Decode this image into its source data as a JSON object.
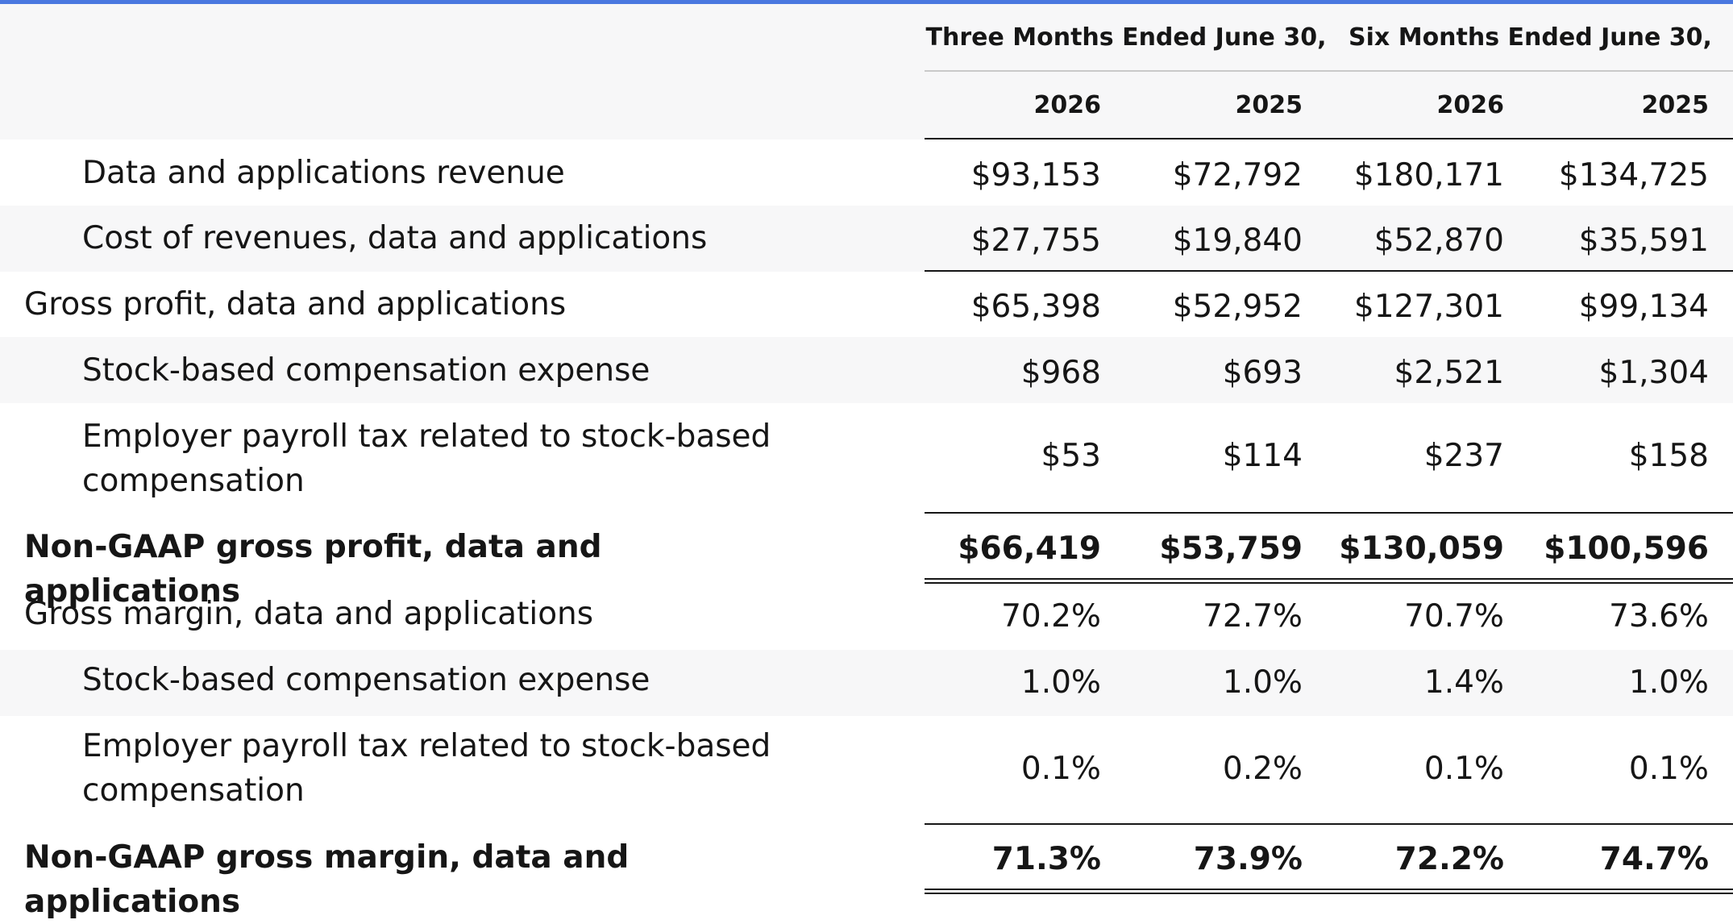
{
  "headers": {
    "periods": [
      "Three Months Ended June 30,",
      "Six Months Ended June 30,"
    ],
    "years": [
      "2026",
      "2025",
      "2026",
      "2025"
    ]
  },
  "rows": [
    {
      "label": "Data and applications revenue",
      "values": [
        "$93,153",
        "$72,792",
        "$180,171",
        "$134,725"
      ]
    },
    {
      "label": "Cost of revenues, data and applications",
      "values": [
        "$27,755",
        "$19,840",
        "$52,870",
        "$35,591"
      ]
    },
    {
      "label": "Gross profit, data and applications",
      "values": [
        "$65,398",
        "$52,952",
        "$127,301",
        "$99,134"
      ]
    },
    {
      "label": "Stock-based compensation expense",
      "values": [
        "$968",
        "$693",
        "$2,521",
        "$1,304"
      ]
    },
    {
      "label": "Employer payroll tax related to stock-based compensation",
      "values": [
        "$53",
        "$114",
        "$237",
        "$158"
      ]
    },
    {
      "label": "Non-GAAP gross profit, data and applications",
      "values": [
        "$66,419",
        "$53,759",
        "$130,059",
        "$100,596"
      ]
    },
    {
      "label": "Gross margin, data and applications",
      "values": [
        "70.2%",
        "72.7%",
        "70.7%",
        "73.6%"
      ]
    },
    {
      "label": "Stock-based compensation expense",
      "values": [
        "1.0%",
        "1.0%",
        "1.4%",
        "1.0%"
      ]
    },
    {
      "label": "Employer payroll tax related to stock-based compensation",
      "values": [
        "0.1%",
        "0.2%",
        "0.1%",
        "0.1%"
      ]
    },
    {
      "label": "Non-GAAP gross margin, data and applications",
      "values": [
        "71.3%",
        "73.9%",
        "72.2%",
        "74.7%"
      ]
    }
  ]
}
